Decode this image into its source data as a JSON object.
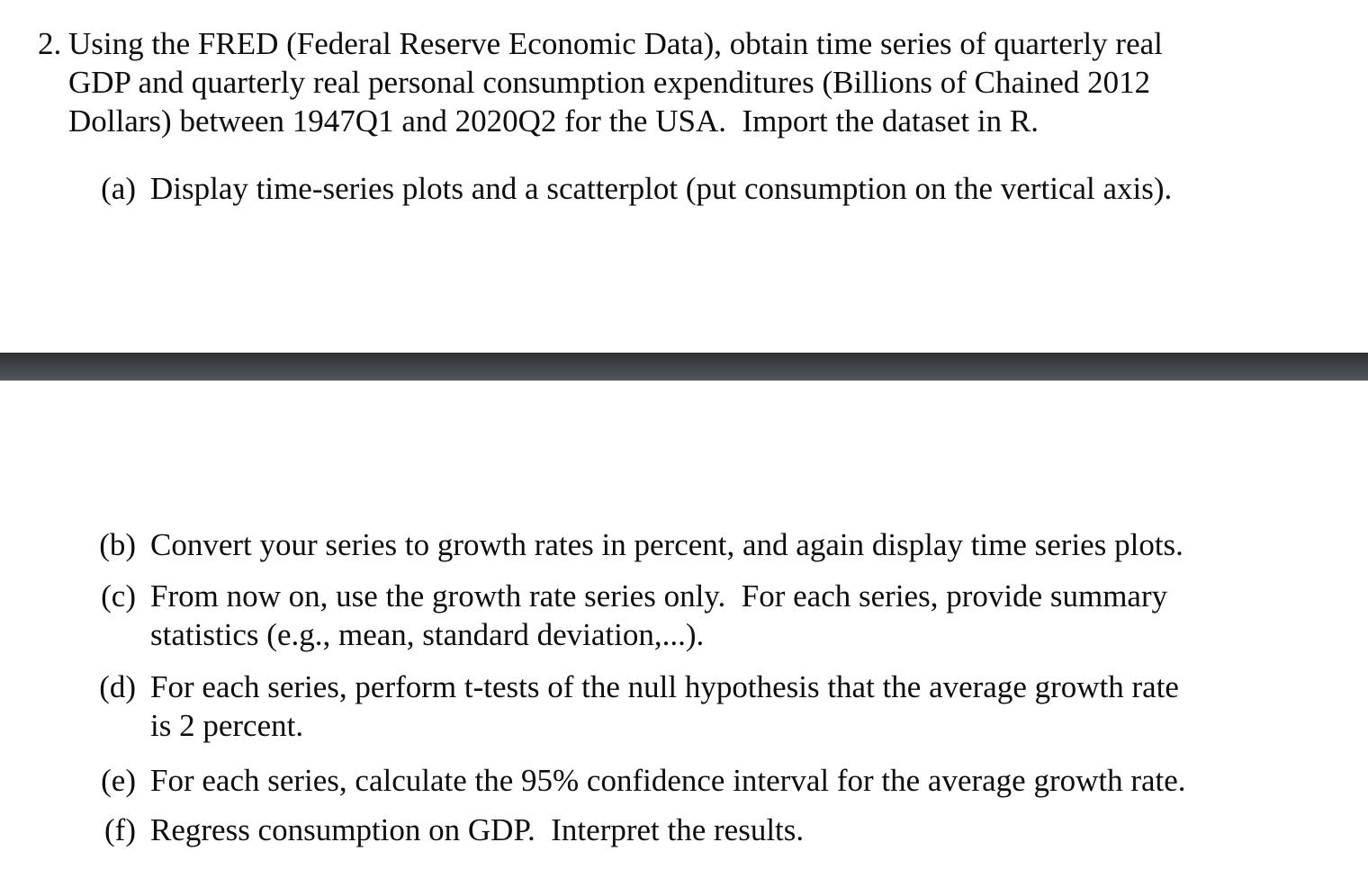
{
  "page": {
    "background_color": "#ffffff",
    "text_color": "#0d0d0d"
  },
  "divider": {
    "color_top": "#2d3135",
    "color_bottom": "#54575c"
  },
  "problem": {
    "number": "2.",
    "intro_lines": [
      "Using the FRED (Federal Reserve Economic Data), obtain time series of quarterly real",
      "GDP and quarterly real personal consumption expenditures (Billions of Chained 2012",
      "Dollars) between 1947Q1 and 2020Q2 for the USA.  Import the dataset in R."
    ],
    "parts_top": [
      {
        "label": "(a)",
        "lines": [
          "Display time-series plots and a scatterplot (put consumption on the vertical axis)."
        ]
      }
    ],
    "parts_bottom": [
      {
        "label": "(b)",
        "lines": [
          "Convert your series to growth rates in percent, and again display time series plots."
        ]
      },
      {
        "label": "(c)",
        "lines": [
          "From now on, use the growth rate series only.  For each series, provide summary",
          "statistics (e.g., mean, standard deviation,...)."
        ]
      },
      {
        "label": "(d)",
        "lines": [
          "For each series, perform t-tests of the null hypothesis that the average growth rate",
          "is 2 percent."
        ]
      },
      {
        "label": "(e)",
        "lines": [
          "For each series, calculate the 95% confidence interval for the average growth rate."
        ]
      },
      {
        "label": "(f)",
        "lines": [
          "Regress consumption on GDP.  Interpret the results."
        ]
      }
    ]
  }
}
